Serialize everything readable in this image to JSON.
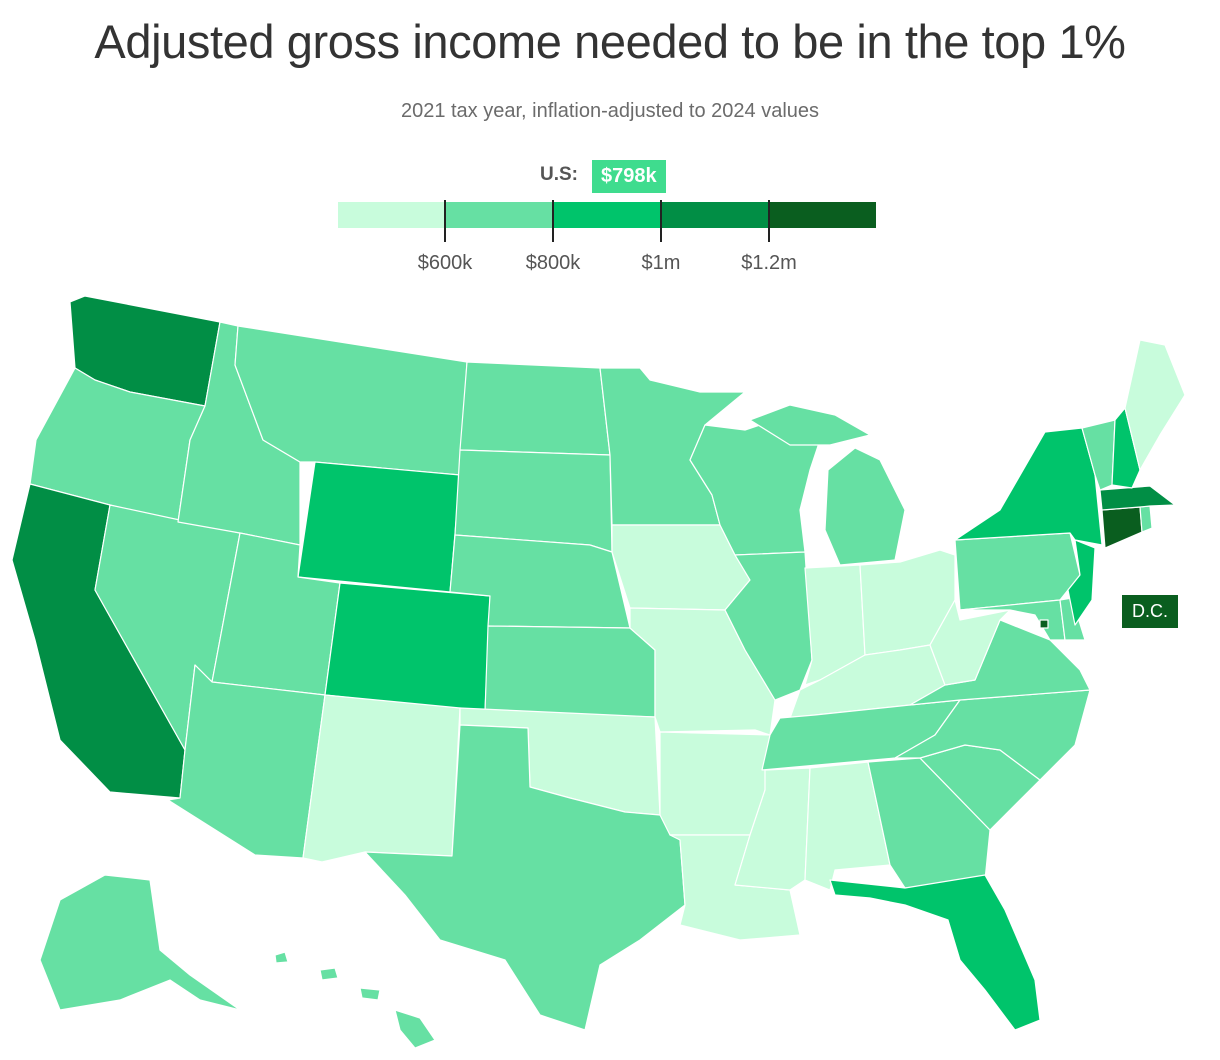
{
  "title": "Adjusted gross income needed to be in the top 1%",
  "subtitle": "2021 tax year, inflation-adjusted to 2024 values",
  "legend": {
    "us_label": "U.S:",
    "us_value": "$798k",
    "ticks": [
      "$600k",
      "$800k",
      "$1m",
      "$1.2m"
    ],
    "colors": [
      "#c8fcdc",
      "#66e0a3",
      "#00c46b",
      "#018e45",
      "#0a5e1f"
    ]
  },
  "dc_label": "D.C.",
  "states": {
    "WA": 3,
    "OR": 1,
    "CA": 3,
    "NV": 1,
    "ID": 1,
    "MT": 1,
    "WY": 2,
    "UT": 1,
    "AZ": 1,
    "CO": 2,
    "NM": 0,
    "ND": 1,
    "SD": 1,
    "NE": 1,
    "KS": 1,
    "OK": 0,
    "TX": 1,
    "MN": 1,
    "IA": 0,
    "MO": 0,
    "AR": 0,
    "LA": 0,
    "WI": 1,
    "IL": 1,
    "MI": 1,
    "IN": 0,
    "OH": 0,
    "KY": 0,
    "TN": 1,
    "MS": 0,
    "AL": 0,
    "GA": 1,
    "FL": 2,
    "SC": 1,
    "NC": 1,
    "VA": 1,
    "WV": 0,
    "PA": 1,
    "NY": 2,
    "NJ": 2,
    "DE": 1,
    "MD": 1,
    "CT": 4,
    "RI": 1,
    "MA": 3,
    "VT": 1,
    "NH": 2,
    "ME": 0,
    "AK": 1,
    "HI": 1,
    "DC": 4
  }
}
